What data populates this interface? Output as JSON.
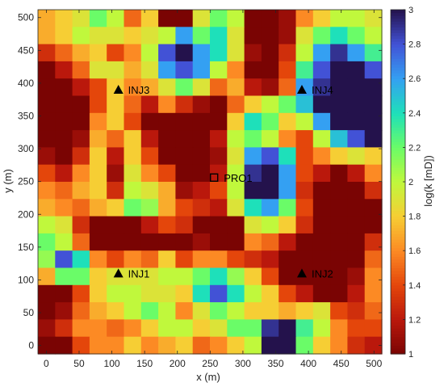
{
  "chart_data": {
    "type": "heatmap",
    "xlabel": "x (m)",
    "ylabel": "y (m)",
    "colorbar_label": "log(k [mD])",
    "colormap": "turbo-reversed",
    "clim": [
      1,
      3
    ],
    "xlim": [
      -12.8,
      512
    ],
    "ylim": [
      -12.8,
      512
    ],
    "xticks": [
      0,
      50,
      100,
      150,
      200,
      250,
      300,
      350,
      400,
      450,
      500
    ],
    "yticks": [
      0,
      50,
      100,
      150,
      200,
      250,
      300,
      350,
      400,
      450,
      500
    ],
    "cbar_ticks": [
      1,
      1.2,
      1.4,
      1.6,
      1.8,
      2,
      2.2,
      2.4,
      2.6,
      2.8,
      3
    ],
    "grid": {
      "nx": 20,
      "ny": 20,
      "cell_size_m": 25.6
    },
    "field_rows_top_to_bottom": [
      [
        1.7,
        1.8,
        1.9,
        2.2,
        2.0,
        1.5,
        1.8,
        1.0,
        1.0,
        1.9,
        2.2,
        2.0,
        1.0,
        1.0,
        1.1,
        1.6,
        1.8,
        2.0,
        2.0,
        1.9
      ],
      [
        1.7,
        1.8,
        2.0,
        1.9,
        1.9,
        1.8,
        1.9,
        2.0,
        2.6,
        2.2,
        2.4,
        1.9,
        1.0,
        1.0,
        1.1,
        1.9,
        2.2,
        2.4,
        2.2,
        2.0
      ],
      [
        1.3,
        1.5,
        1.7,
        1.8,
        1.4,
        1.6,
        2.0,
        2.8,
        3.0,
        2.6,
        2.4,
        1.9,
        1.1,
        1.0,
        1.3,
        2.0,
        2.6,
        2.9,
        2.6,
        2.3
      ],
      [
        1.0,
        1.2,
        1.5,
        1.9,
        1.9,
        1.7,
        1.9,
        2.6,
        2.8,
        2.6,
        2.0,
        1.6,
        1.0,
        1.0,
        1.4,
        2.3,
        2.8,
        3.0,
        3.0,
        2.8
      ],
      [
        1.0,
        1.0,
        1.2,
        1.4,
        1.8,
        1.6,
        1.7,
        1.9,
        2.2,
        1.9,
        1.5,
        1.7,
        1.2,
        1.1,
        1.5,
        2.6,
        2.9,
        3.0,
        3.0,
        3.0
      ],
      [
        1.0,
        1.0,
        1.0,
        1.4,
        1.8,
        1.5,
        1.2,
        1.6,
        1.3,
        1.1,
        1.0,
        1.5,
        1.8,
        2.0,
        2.2,
        2.5,
        3.0,
        3.0,
        3.0,
        3.0
      ],
      [
        1.0,
        1.0,
        1.0,
        1.6,
        1.8,
        1.4,
        1.0,
        1.0,
        1.0,
        1.0,
        1.0,
        1.8,
        2.4,
        2.2,
        1.8,
        2.0,
        2.6,
        3.0,
        3.0,
        3.0
      ],
      [
        1.0,
        1.0,
        1.1,
        1.7,
        1.5,
        1.8,
        1.2,
        1.0,
        1.0,
        1.0,
        1.2,
        2.0,
        2.2,
        2.0,
        1.6,
        1.4,
        2.0,
        2.5,
        2.8,
        3.0
      ],
      [
        1.1,
        1.0,
        1.3,
        1.8,
        1.2,
        1.8,
        1.4,
        1.0,
        1.0,
        1.0,
        1.1,
        1.9,
        2.6,
        2.8,
        2.4,
        1.4,
        1.6,
        1.8,
        1.9,
        1.8
      ],
      [
        1.4,
        1.2,
        1.6,
        1.8,
        1.1,
        1.9,
        1.6,
        1.4,
        1.0,
        1.0,
        1.2,
        2.0,
        2.9,
        3.0,
        2.6,
        1.4,
        1.2,
        1.0,
        1.2,
        1.6
      ],
      [
        1.6,
        1.5,
        1.7,
        1.8,
        1.3,
        2.0,
        1.9,
        1.7,
        1.1,
        1.2,
        1.4,
        2.0,
        3.0,
        3.0,
        2.6,
        1.3,
        1.0,
        1.0,
        1.0,
        1.3
      ],
      [
        1.7,
        1.6,
        1.5,
        1.7,
        1.8,
        2.2,
        2.1,
        1.7,
        1.4,
        1.3,
        1.2,
        1.9,
        2.4,
        2.6,
        2.2,
        1.4,
        1.0,
        1.0,
        1.0,
        1.0
      ],
      [
        2.0,
        1.9,
        1.3,
        1.0,
        1.0,
        1.0,
        1.2,
        1.4,
        1.3,
        1.0,
        1.0,
        1.0,
        1.9,
        2.0,
        1.8,
        1.3,
        1.0,
        1.0,
        1.0,
        1.0
      ],
      [
        2.2,
        2.0,
        1.5,
        1.0,
        1.0,
        1.0,
        1.0,
        1.0,
        1.0,
        1.1,
        1.0,
        1.0,
        1.6,
        1.5,
        1.2,
        1.0,
        1.0,
        1.0,
        1.0,
        1.3
      ],
      [
        2.1,
        2.8,
        2.4,
        1.6,
        1.4,
        1.6,
        1.5,
        1.8,
        1.4,
        1.6,
        1.6,
        1.4,
        1.3,
        1.2,
        1.0,
        1.0,
        1.0,
        1.0,
        1.0,
        1.5
      ],
      [
        1.7,
        2.2,
        2.2,
        1.8,
        1.9,
        1.9,
        1.9,
        2.0,
        2.0,
        2.2,
        2.4,
        2.1,
        1.8,
        1.4,
        1.0,
        1.0,
        1.0,
        1.0,
        1.1,
        1.6
      ],
      [
        1.0,
        1.0,
        1.4,
        1.8,
        2.0,
        2.0,
        1.9,
        1.9,
        1.8,
        2.4,
        2.8,
        2.4,
        2.0,
        1.8,
        1.4,
        1.2,
        1.0,
        1.0,
        1.2,
        1.6
      ],
      [
        1.0,
        1.1,
        1.5,
        1.7,
        1.8,
        2.0,
        2.2,
        2.0,
        1.6,
        1.9,
        2.2,
        2.0,
        1.8,
        1.8,
        1.7,
        1.8,
        1.9,
        1.4,
        1.3,
        1.5
      ],
      [
        1.1,
        1.3,
        1.6,
        1.6,
        1.5,
        1.6,
        1.8,
        2.0,
        2.0,
        1.8,
        1.9,
        2.2,
        2.2,
        2.9,
        3.0,
        2.3,
        2.0,
        1.6,
        1.4,
        1.4
      ],
      [
        1.0,
        1.0,
        1.4,
        1.6,
        1.6,
        1.8,
        1.6,
        1.7,
        1.8,
        1.5,
        1.6,
        1.8,
        2.0,
        3.0,
        3.0,
        2.2,
        1.8,
        1.6,
        1.3,
        1.2
      ]
    ],
    "wells": [
      {
        "name": "INJ1",
        "type": "injector",
        "x": 110,
        "y": 110
      },
      {
        "name": "INJ2",
        "type": "injector",
        "x": 390,
        "y": 110
      },
      {
        "name": "INJ3",
        "type": "injector",
        "x": 110,
        "y": 390
      },
      {
        "name": "INJ4",
        "type": "injector",
        "x": 390,
        "y": 390
      },
      {
        "name": "PRO1",
        "type": "producer",
        "x": 256,
        "y": 256
      }
    ]
  }
}
